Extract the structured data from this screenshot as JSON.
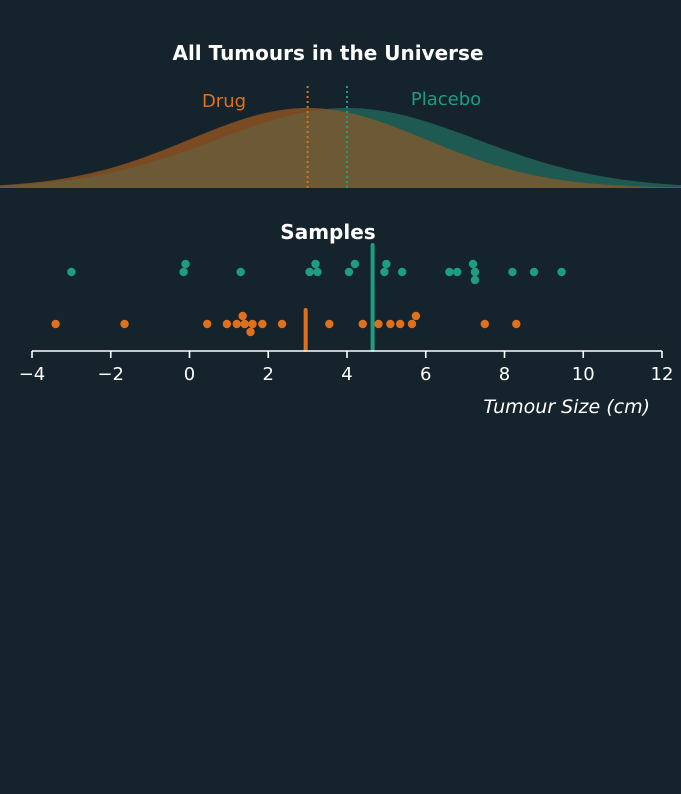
{
  "chart_data": [
    {
      "type": "area",
      "title": "All Tumours in the Universe",
      "series": [
        {
          "name": "Drug",
          "color": "#e0701c",
          "fill": "#7a4a22",
          "mean": 3.0,
          "sd": 3.0
        },
        {
          "name": "Placebo",
          "color": "#1e9e80",
          "fill": "#1f5a52",
          "mean": 4.0,
          "sd": 3.3
        }
      ],
      "overlap_fill": "#6b5a35",
      "mean_lines": "dotted",
      "xlim": [
        -4,
        12
      ],
      "xlabel": "",
      "ylabel": ""
    },
    {
      "type": "scatter",
      "title": "Samples",
      "xlabel": "Tumour Size (cm)",
      "ylabel": "",
      "xlim": [
        -4,
        12
      ],
      "xticks": [
        -4,
        -2,
        0,
        2,
        4,
        6,
        8,
        10,
        12
      ],
      "xtick_labels": [
        "−4",
        "−2",
        "0",
        "2",
        "4",
        "6",
        "8",
        "10",
        "12"
      ],
      "series": [
        {
          "name": "Placebo",
          "color": "#1e9e80",
          "mean": 4.65,
          "points": [
            {
              "x": -3.0,
              "y": 0
            },
            {
              "x": -0.15,
              "y": 0
            },
            {
              "x": -0.1,
              "y": 1
            },
            {
              "x": 1.3,
              "y": 0
            },
            {
              "x": 3.05,
              "y": 0
            },
            {
              "x": 3.2,
              "y": 1
            },
            {
              "x": 3.25,
              "y": 0
            },
            {
              "x": 4.05,
              "y": 0
            },
            {
              "x": 4.2,
              "y": 1
            },
            {
              "x": 4.95,
              "y": 0
            },
            {
              "x": 5.0,
              "y": 1
            },
            {
              "x": 5.4,
              "y": 0
            },
            {
              "x": 6.6,
              "y": 0
            },
            {
              "x": 6.8,
              "y": 0
            },
            {
              "x": 7.2,
              "y": 1
            },
            {
              "x": 7.25,
              "y": 0
            },
            {
              "x": 7.25,
              "y": -1
            },
            {
              "x": 8.2,
              "y": 0
            },
            {
              "x": 8.75,
              "y": 0
            },
            {
              "x": 9.45,
              "y": 0
            }
          ]
        },
        {
          "name": "Drug",
          "color": "#e0701c",
          "mean": 2.95,
          "points": [
            {
              "x": -3.4,
              "y": 0
            },
            {
              "x": -1.65,
              "y": 0
            },
            {
              "x": 0.45,
              "y": 0
            },
            {
              "x": 0.95,
              "y": 0
            },
            {
              "x": 1.2,
              "y": 0
            },
            {
              "x": 1.35,
              "y": 1
            },
            {
              "x": 1.4,
              "y": 0
            },
            {
              "x": 1.55,
              "y": -1
            },
            {
              "x": 1.6,
              "y": 0
            },
            {
              "x": 1.85,
              "y": 0
            },
            {
              "x": 2.35,
              "y": 0
            },
            {
              "x": 3.55,
              "y": 0
            },
            {
              "x": 4.4,
              "y": 0
            },
            {
              "x": 4.8,
              "y": 0
            },
            {
              "x": 5.1,
              "y": 0
            },
            {
              "x": 5.35,
              "y": 0
            },
            {
              "x": 5.65,
              "y": 0
            },
            {
              "x": 5.75,
              "y": 1
            },
            {
              "x": 7.5,
              "y": 0
            },
            {
              "x": 8.3,
              "y": 0
            }
          ]
        }
      ]
    }
  ]
}
